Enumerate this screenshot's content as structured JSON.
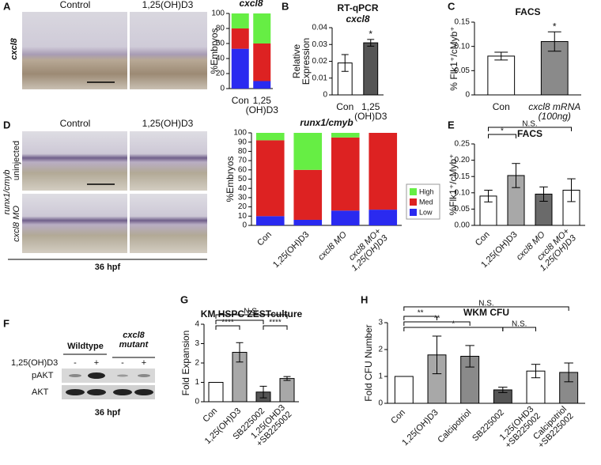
{
  "panel_labels": [
    "A",
    "B",
    "C",
    "D",
    "E",
    "F",
    "G",
    "H"
  ],
  "images": {
    "a_columns": [
      "Control",
      "1,25(OH)D3"
    ],
    "a_row": "cxcl8",
    "d_columns": [
      "Control",
      "1,25(OH)D3"
    ],
    "d_rows": [
      "uninjected",
      "cxcl8 MO"
    ],
    "d_gene": "runx1/cmyb",
    "d_stage": "36 hpf"
  },
  "blot": {
    "groups": [
      "Wildtype",
      "cxcl8\nmutant"
    ],
    "treatment": "1,25(OH)D3",
    "signs": [
      "-",
      "+",
      "-",
      "+"
    ],
    "rows": [
      "pAKT",
      "AKT"
    ],
    "stage": "36 hpf"
  },
  "chart_data": [
    {
      "type": "stacked_bar",
      "title": "cxcl8",
      "ylabel": "%Embryos",
      "categories": [
        "Con",
        "1,25\n(OH)D3"
      ],
      "series": [
        {
          "name": "High",
          "color": "#66ee44",
          "values": [
            20,
            40
          ]
        },
        {
          "name": "Med",
          "color": "#dd2222",
          "values": [
            27,
            50
          ]
        },
        {
          "name": "Low",
          "color": "#2a2af0",
          "values": [
            53,
            10
          ]
        }
      ],
      "ylim": [
        0,
        100
      ],
      "yticks": [
        0,
        20,
        40,
        60,
        80,
        100
      ]
    },
    {
      "type": "bar",
      "title": "RT-qPCR",
      "subtitle": "cxcl8",
      "ylabel": "Relative\nExpression",
      "categories": [
        "Con",
        "1,25\n(OH)D3"
      ],
      "values": [
        0.019,
        0.031
      ],
      "errors": [
        0.005,
        0.002
      ],
      "colors": [
        "#ffffff",
        "#555555"
      ],
      "ylim": [
        0,
        0.04
      ],
      "yticks": [
        0,
        0.01,
        0.02,
        0.03,
        0.04
      ],
      "annotations": [
        "*"
      ]
    },
    {
      "type": "bar",
      "title": "FACS",
      "ylabel": "% Flk1⁺/cMyb⁺",
      "categories": [
        "Con",
        "cxcl8 mRNA\n(100ng)"
      ],
      "values": [
        0.08,
        0.11
      ],
      "errors": [
        0.008,
        0.02
      ],
      "colors": [
        "#ffffff",
        "#8a8a8a"
      ],
      "ylim": [
        0,
        0.15
      ],
      "yticks": [
        0,
        0.05,
        {
          "value": 0.1,
          "label": "0.10"
        },
        0.15
      ],
      "annotations": [
        "*"
      ]
    },
    {
      "type": "stacked_bar",
      "title": "runx1/cmyb",
      "ylabel": "%Embryos",
      "legend": true,
      "categories": [
        "Con",
        "1,25(OH)D3",
        "cxcl8 MO",
        "cxcl8 MO+\n1,25(OH)D3"
      ],
      "series": [
        {
          "name": "High",
          "color": "#66ee44",
          "values": [
            8,
            40,
            5,
            0
          ]
        },
        {
          "name": "Med",
          "color": "#dd2222",
          "values": [
            82,
            54,
            79,
            83
          ]
        },
        {
          "name": "Low",
          "color": "#2a2af0",
          "values": [
            10,
            6,
            16,
            17
          ]
        }
      ],
      "ylim": [
        0,
        100
      ],
      "yticks": [
        0,
        10,
        20,
        30,
        40,
        50,
        60,
        70,
        80,
        90,
        100
      ]
    },
    {
      "type": "bar",
      "title": "FACS",
      "ylabel": "%Flk1⁺/cMyb⁺",
      "categories": [
        "Con",
        "1,25(OH)D3",
        "cxcl8 MO",
        "cxcl8 MO+\n1,25(OH)D3"
      ],
      "values": [
        0.09,
        0.153,
        0.096,
        0.108
      ],
      "errors": [
        0.018,
        0.037,
        0.022,
        0.035
      ],
      "colors": [
        "#ffffff",
        "#a8a8a8",
        "#6a6a6a",
        "#ffffff"
      ],
      "ylim": [
        0,
        0.25
      ],
      "yticks": [
        {
          "value": 0,
          "label": "0.00"
        },
        0.05,
        {
          "value": 0.1,
          "label": "0.10"
        },
        0.15,
        {
          "value": 0.2,
          "label": "0.20"
        },
        0.25
      ],
      "annotations": [
        "*",
        "N.S."
      ]
    },
    {
      "type": "bar",
      "title": "KM HSPC ZESTculture",
      "ylabel": "Fold Expansion",
      "categories": [
        "Con",
        "1,25(OH)D3",
        "SB225002",
        "1,25(OHD3\n+SB225002"
      ],
      "values": [
        1,
        2.55,
        0.5,
        1.2
      ],
      "errors": [
        null,
        0.5,
        0.3,
        0.1
      ],
      "colors": [
        "#ffffff",
        "#a8a8a8",
        "#555555",
        "#a8a8a8"
      ],
      "ylim": [
        0,
        4
      ],
      "yticks": [
        0,
        1,
        2,
        3,
        4
      ],
      "annotations": [
        "N.S.",
        "*",
        "****",
        "****"
      ]
    },
    {
      "type": "bar",
      "title": "WKM CFU",
      "ylabel": "Fold CFU Number",
      "categories": [
        "Con",
        "1,25(OH)D3",
        "Calcipotriol",
        "SB225002",
        "1,25(OHD3\n+SB225002",
        "Calcipotriol\n+SB225002"
      ],
      "values": [
        1,
        1.8,
        1.75,
        0.5,
        1.2,
        1.15
      ],
      "errors": [
        null,
        0.7,
        0.4,
        0.1,
        0.25,
        0.35
      ],
      "colors": [
        "#ffffff",
        "#a8a8a8",
        "#8a8a8a",
        "#555555",
        "#ffffff",
        "#8a8a8a"
      ],
      "ylim": [
        0,
        3
      ],
      "yticks": [
        0,
        1,
        2,
        3
      ],
      "annotations": [
        "N.S.",
        "**",
        "**",
        "*",
        "N.S."
      ]
    }
  ]
}
